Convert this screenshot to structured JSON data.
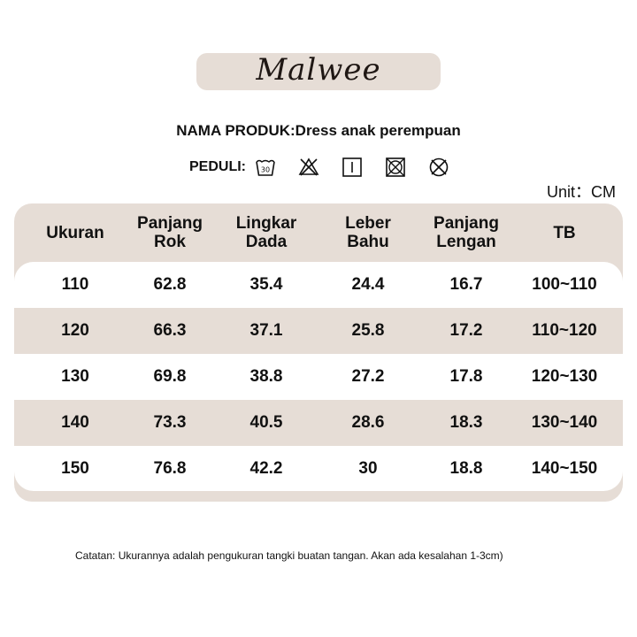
{
  "brand": {
    "logo_text": "Malwee"
  },
  "product": {
    "line": "NAMA PRODUK:Dress anak perempuan"
  },
  "care": {
    "label": "PEDULI:",
    "icons": [
      "wash-30-icon",
      "no-bleach-icon",
      "line-dry-icon",
      "no-tumble-dry-icon",
      "no-dry-clean-icon"
    ],
    "wash_temp": "30"
  },
  "unit": {
    "label": "Unit：CM"
  },
  "table": {
    "headers": [
      [
        "Ukuran"
      ],
      [
        "Panjang",
        "Rok"
      ],
      [
        "Lingkar",
        "Dada"
      ],
      [
        "Leber",
        "Bahu"
      ],
      [
        "Panjang",
        "Lengan"
      ],
      [
        "TB"
      ]
    ],
    "rows": [
      [
        "110",
        "62.8",
        "35.4",
        "24.4",
        "16.7",
        "100~110"
      ],
      [
        "120",
        "66.3",
        "37.1",
        "25.8",
        "17.2",
        "110~120"
      ],
      [
        "130",
        "69.8",
        "38.8",
        "27.2",
        "17.8",
        "120~130"
      ],
      [
        "140",
        "73.3",
        "40.5",
        "28.6",
        "18.3",
        "130~140"
      ],
      [
        "150",
        "76.8",
        "42.2",
        "30",
        "18.8",
        "140~150"
      ]
    ]
  },
  "note": {
    "text": "Catatan: Ukurannya adalah pengukuran tangki buatan tangan. Akan ada kesalahan 1-3cm)"
  },
  "colors": {
    "band": "#e6ddd6",
    "text": "#111111",
    "white": "#ffffff"
  }
}
